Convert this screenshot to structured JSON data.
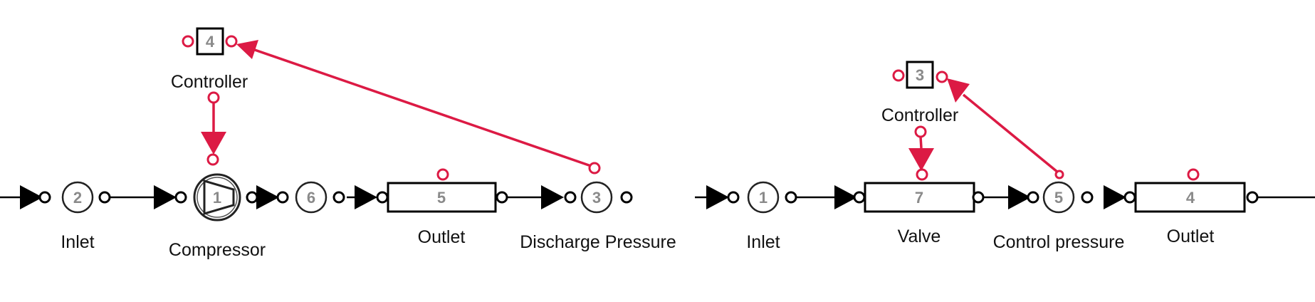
{
  "colors": {
    "signal": "#dc1a44",
    "line": "#000000",
    "number": "#8a8a8a",
    "text": "#111111"
  },
  "left": {
    "inlet_node": "2",
    "inlet_label": "Inlet",
    "compressor_node": "1",
    "compressor_label": "Compressor",
    "junction_node": "6",
    "outlet_node": "5",
    "outlet_label": "Outlet",
    "discharge_node": "3",
    "discharge_label": "Discharge Pressure",
    "controller_node": "4",
    "controller_label": "Controller"
  },
  "right": {
    "inlet_node": "1",
    "inlet_label": "Inlet",
    "valve_node": "7",
    "valve_label": "Valve",
    "control_node": "5",
    "control_label": "Control pressure",
    "outlet_node": "4",
    "outlet_label": "Outlet",
    "controller_node": "3",
    "controller_label": "Controller"
  }
}
